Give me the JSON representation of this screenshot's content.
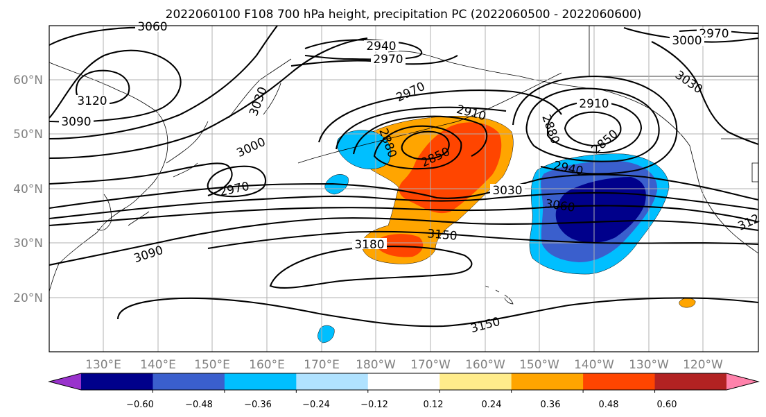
{
  "title": "2022060100 F108 700 hPa height, precipitation PC (2022060500 - 2022060600)",
  "lat_labels": [
    "60°N",
    "50°N",
    "40°N",
    "30°N",
    "20°N"
  ],
  "lon_labels": [
    "130°E",
    "140°E",
    "150°E",
    "160°E",
    "170°E",
    "180°W",
    "170°W",
    "160°W",
    "150°W",
    "140°W",
    "130°W",
    "120°W"
  ],
  "contour_labels": [
    "3060",
    "2940",
    "2970",
    "2970",
    "2970",
    "3000",
    "3030",
    "3120",
    "3090",
    "3030",
    "2970",
    "3000",
    "2910",
    "2910",
    "2880",
    "2880",
    "2850",
    "2850",
    "2940",
    "3030",
    "3060",
    "3150",
    "3180",
    "3090",
    "3150",
    "312"
  ],
  "colorbar": {
    "ticks": [
      "−0.60",
      "−0.48",
      "−0.36",
      "−0.24",
      "−0.12",
      "0.12",
      "0.24",
      "0.36",
      "0.48",
      "0.60"
    ],
    "colors": [
      "#9932cc",
      "#00008b",
      "#3a5fcd",
      "#00bfff",
      "#b0e2ff",
      "#ffffff",
      "#ffec8b",
      "#ffa500",
      "#ff4500",
      "#b22222",
      "#ff82ab"
    ]
  }
}
